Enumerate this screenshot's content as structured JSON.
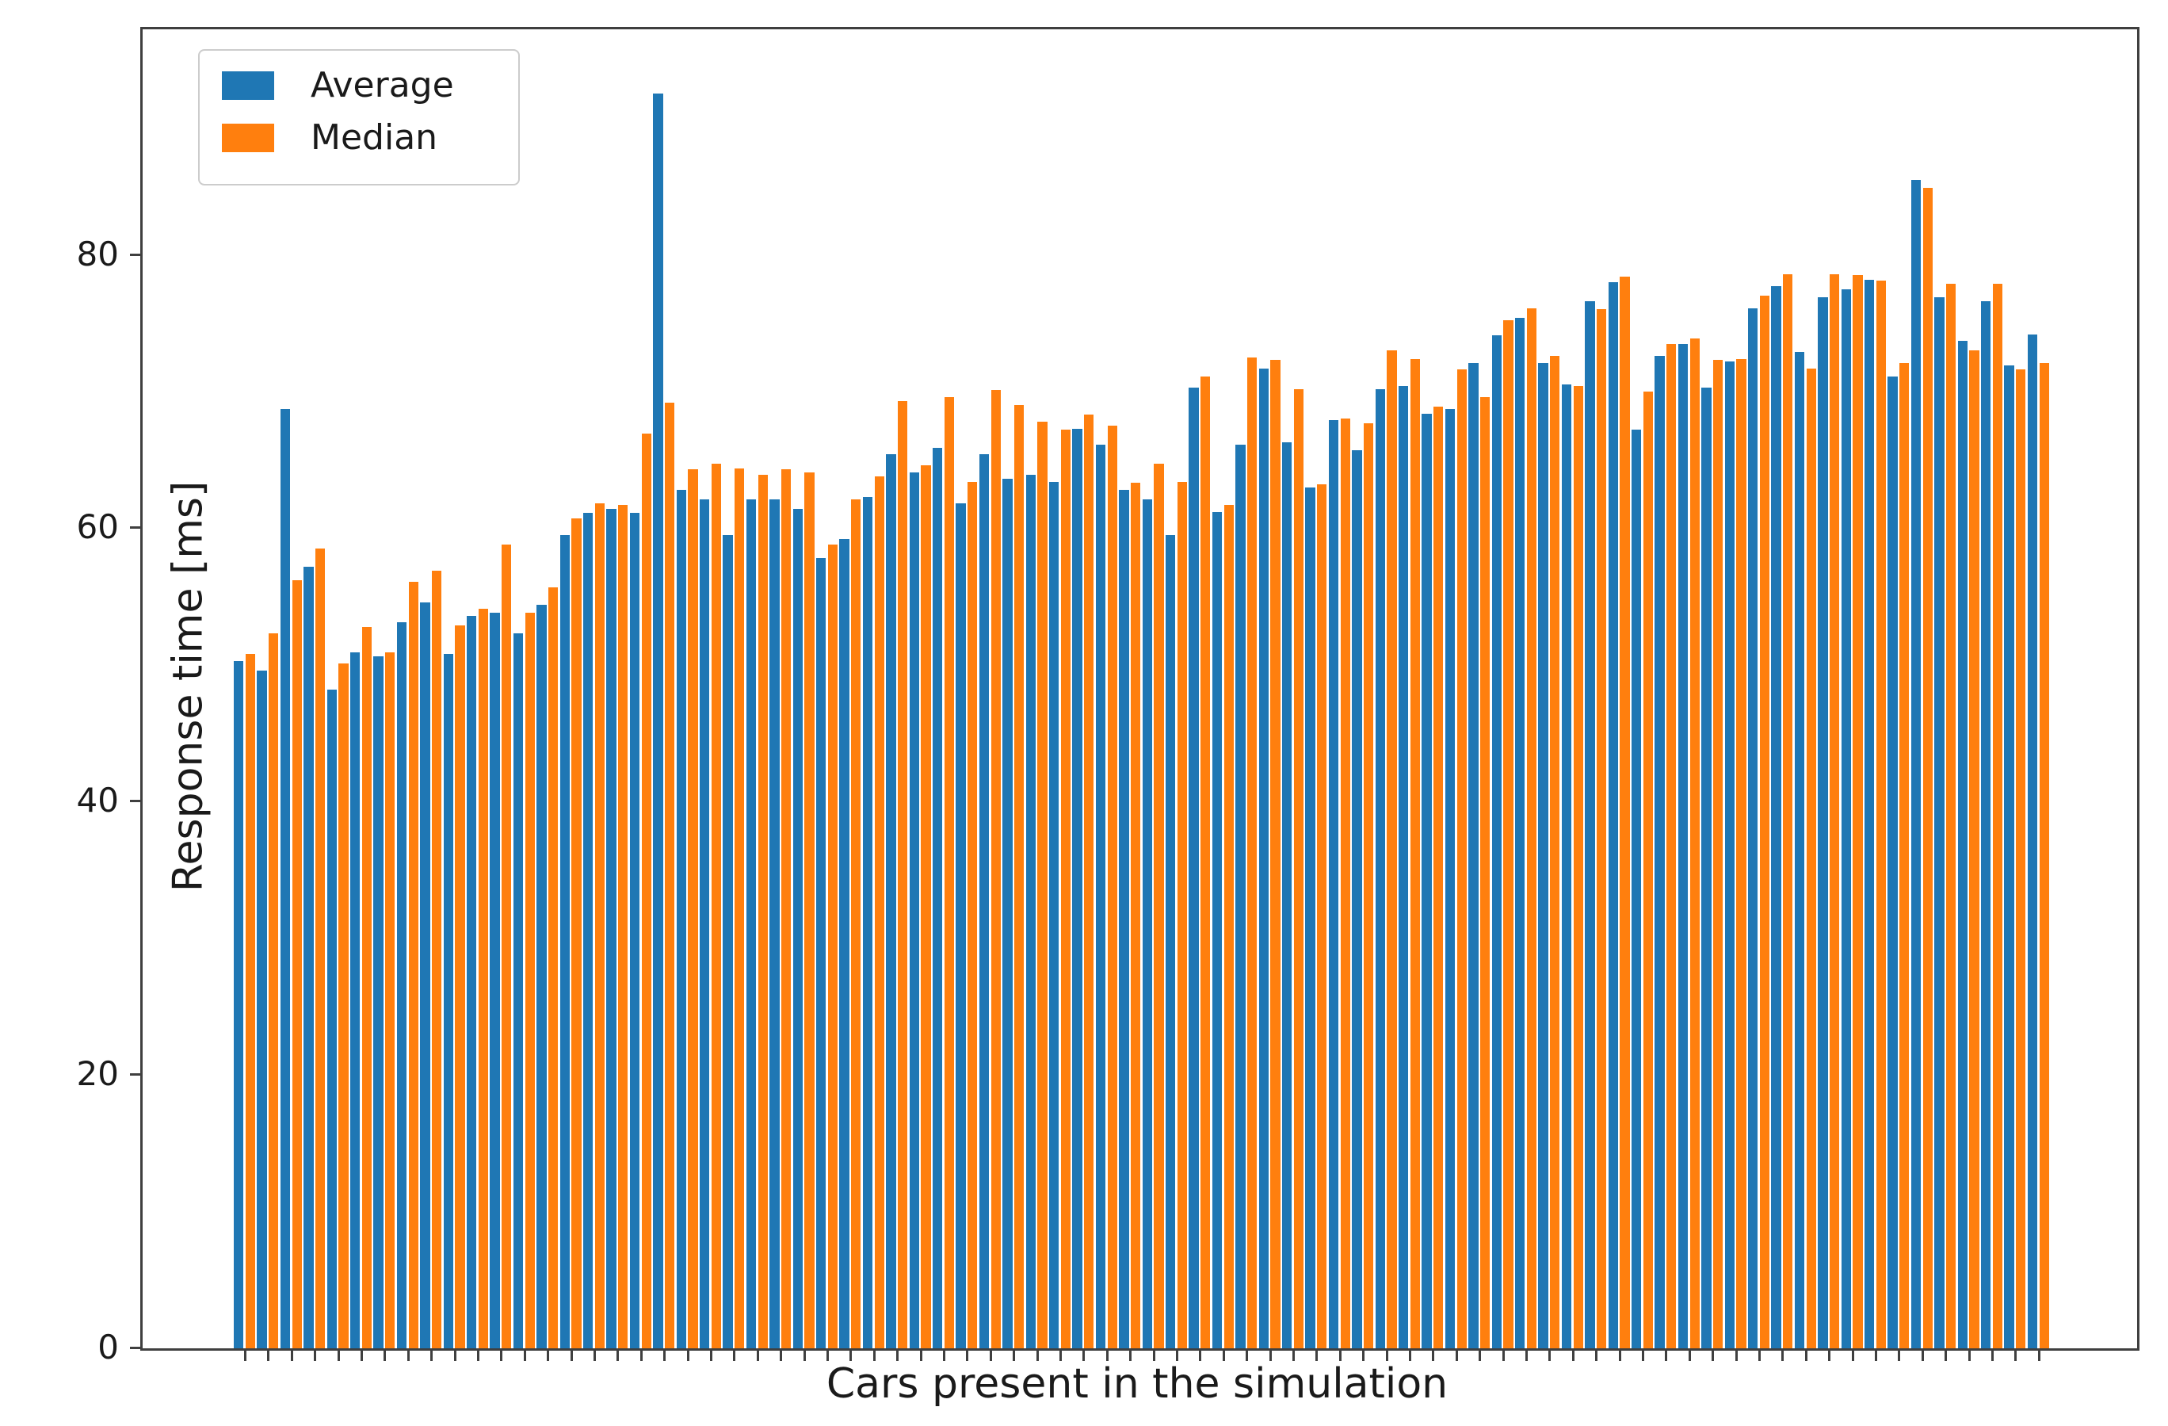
{
  "chart_data": {
    "type": "bar",
    "title": "",
    "xlabel": "Cars present in the simulation",
    "ylabel": "Response time [ms]",
    "x_tick_labels_visible": false,
    "yticks": [
      0,
      20,
      40,
      60,
      80
    ],
    "ylim": [
      0,
      96.5
    ],
    "grid": false,
    "legend_position": "upper left",
    "num_groups": 78,
    "colors": {
      "average": "#1f77b4",
      "median": "#ff7f0e"
    },
    "series": [
      {
        "name": "Average",
        "color": "#1f77b4",
        "values": [
          50.3,
          49.6,
          68.7,
          57.2,
          48.2,
          50.9,
          50.6,
          53.1,
          54.6,
          50.8,
          53.6,
          53.8,
          52.3,
          54.4,
          59.5,
          61.1,
          61.4,
          61.1,
          91.8,
          62.8,
          62.1,
          59.5,
          62.1,
          62.1,
          61.4,
          57.8,
          59.2,
          62.3,
          65.4,
          64.1,
          65.9,
          61.8,
          65.4,
          63.6,
          63.9,
          63.4,
          67.3,
          66.1,
          62.8,
          62.1,
          59.5,
          70.3,
          61.2,
          66.1,
          71.7,
          66.3,
          63.0,
          67.9,
          65.7,
          70.2,
          70.4,
          68.4,
          68.7,
          72.1,
          74.1,
          75.4,
          72.1,
          70.5,
          76.6,
          78.0,
          67.2,
          72.6,
          73.5,
          70.3,
          72.2,
          76.1,
          77.7,
          72.9,
          76.9,
          77.5,
          78.2,
          71.1,
          85.5,
          76.9,
          73.7,
          76.6,
          71.9,
          74.2
        ]
      },
      {
        "name": "Median",
        "color": "#ff7f0e",
        "values": [
          50.8,
          52.3,
          56.2,
          58.5,
          50.1,
          52.8,
          50.9,
          56.1,
          56.9,
          52.9,
          54.1,
          58.8,
          53.8,
          55.7,
          60.7,
          61.8,
          61.7,
          66.9,
          69.2,
          64.3,
          64.7,
          64.4,
          63.9,
          64.3,
          64.1,
          58.8,
          62.1,
          63.8,
          69.3,
          64.6,
          69.6,
          63.4,
          70.1,
          69.0,
          67.8,
          67.2,
          68.3,
          67.5,
          63.3,
          64.7,
          63.4,
          71.1,
          61.7,
          72.5,
          72.3,
          70.2,
          63.2,
          68.0,
          67.7,
          73.0,
          72.4,
          68.9,
          71.6,
          69.6,
          75.2,
          76.1,
          72.6,
          70.4,
          76.0,
          78.4,
          70.0,
          73.5,
          73.9,
          72.3,
          72.4,
          77.0,
          78.6,
          71.7,
          78.6,
          78.5,
          78.1,
          72.1,
          84.9,
          77.9,
          73.0,
          77.9,
          71.6,
          72.1
        ]
      }
    ]
  }
}
